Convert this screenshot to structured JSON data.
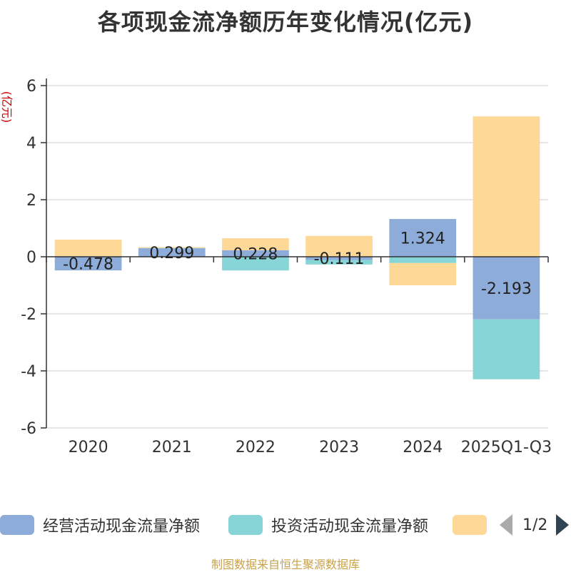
{
  "title": "各项现金流净额历年变化情况(亿元)",
  "chart_data": {
    "type": "bar",
    "stacked": true,
    "title": "各项现金流净额历年变化情况(亿元)",
    "ylabel": "(亿元)",
    "xlabel": "",
    "ylim": [
      -6,
      6
    ],
    "yticks": [
      6,
      4,
      2,
      0,
      -2,
      -4,
      -6
    ],
    "categories": [
      "2020",
      "2021",
      "2022",
      "2023",
      "2024",
      "2025Q1-Q3"
    ],
    "series": [
      {
        "name": "经营活动现金流量净额",
        "color": "#8eacd9",
        "values": [
          -0.478,
          0.299,
          0.228,
          -0.111,
          1.324,
          -2.193
        ],
        "labels": [
          "-0.478",
          "0.299",
          "0.228",
          "-0.111",
          "1.324",
          "-2.193"
        ]
      },
      {
        "name": "投资活动现金流量净额",
        "color": "#88d5d8",
        "values": [
          0.02,
          0.01,
          -0.48,
          -0.16,
          -0.22,
          -2.1
        ]
      },
      {
        "name": "",
        "color": "#fed897",
        "values": [
          0.58,
          0.03,
          0.42,
          0.73,
          -0.78,
          4.92
        ]
      }
    ],
    "legend_position": "bottom"
  },
  "legend": {
    "items": [
      "经营活动现金流量净额",
      "投资活动现金流量净额",
      ""
    ],
    "page": "1/2"
  },
  "source": "制图数据来自恒生聚源数据库"
}
